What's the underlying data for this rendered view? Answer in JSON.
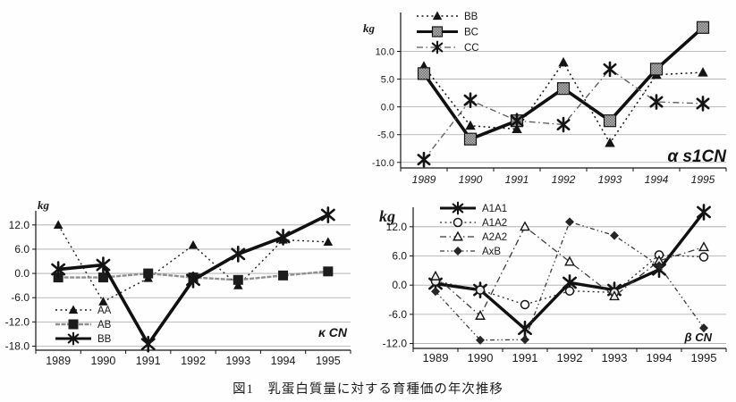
{
  "figure": {
    "caption": "図1　乳蛋白質量に対する育種価の年次推移",
    "unit": "kg"
  },
  "chart_data": [
    {
      "id": "alpha-s1cn",
      "type": "line",
      "name_label": "α s1CN",
      "unit_label": "kg",
      "categories": [
        "1989",
        "1990",
        "1991",
        "1992",
        "1993",
        "1994",
        "1995"
      ],
      "x_labels_italic": true,
      "ylim": [
        -11,
        17
      ],
      "yticks": [
        10,
        5,
        0,
        -5,
        -10
      ],
      "ytick_labels": [
        "10.0",
        "5.0",
        "0.0",
        "-5.0",
        "-10.0"
      ],
      "grid": true,
      "legend_position": "top-left",
      "series": [
        {
          "name": "BB",
          "values": [
            7.3,
            -3.4,
            -4.0,
            8.0,
            -6.5,
            5.8,
            6.2
          ],
          "marker": "triangle",
          "msize": 6,
          "line": "dotted",
          "width": 1.5,
          "color": "#151515"
        },
        {
          "name": "BC",
          "values": [
            6.0,
            -5.8,
            -2.5,
            3.3,
            -2.5,
            6.8,
            14.3
          ],
          "marker": "square",
          "msize": 6.5,
          "line": "solid",
          "width": 3.6,
          "color": "#101010"
        },
        {
          "name": "CC",
          "values": [
            -9.5,
            1.2,
            -2.5,
            -3.2,
            6.8,
            0.9,
            0.6
          ],
          "marker": "asterisk",
          "msize": 6.5,
          "line": "dashdot",
          "width": 1.3,
          "color": "#5a5a5a"
        }
      ]
    },
    {
      "id": "kappa-cn",
      "type": "line",
      "name_label": "κ CN",
      "unit_label": "kg",
      "categories": [
        "1989",
        "1990",
        "1991",
        "1992",
        "1993",
        "1994",
        "1995"
      ],
      "x_labels_italic": false,
      "ylim": [
        -19,
        15.5
      ],
      "yticks": [
        12,
        6,
        0,
        -6,
        -12,
        -18
      ],
      "ytick_labels": [
        "12.0",
        "6.0",
        "0.0",
        "-6.0",
        "-12.0",
        "-18.0"
      ],
      "grid": true,
      "legend_position": "bottom-left",
      "series": [
        {
          "name": "AA",
          "values": [
            12.0,
            -7.0,
            -1.2,
            7.0,
            -3.0,
            8.3,
            7.8
          ],
          "marker": "triangle",
          "msize": 5.5,
          "line": "dotted",
          "width": 1.4,
          "color": "#1a1a1a"
        },
        {
          "name": "AB",
          "values": [
            -1.0,
            -1.0,
            0.0,
            -1.0,
            -1.6,
            -0.5,
            0.5
          ],
          "marker": "square-dark",
          "msize": 5.5,
          "line": "dense",
          "width": 2.4,
          "color": "#8f8f8f"
        },
        {
          "name": "BB",
          "values": [
            1.0,
            2.1,
            -17.5,
            -1.6,
            4.8,
            9.0,
            14.5
          ],
          "marker": "asterisk",
          "msize": 7,
          "line": "solid",
          "width": 3.6,
          "color": "#101010"
        }
      ]
    },
    {
      "id": "beta-cn",
      "type": "line",
      "name_label": "β CN",
      "unit_label": "kg",
      "categories": [
        "1989",
        "1990",
        "1991",
        "1992",
        "1993",
        "1994",
        "1995"
      ],
      "x_labels_italic": false,
      "ylim": [
        -13,
        16
      ],
      "yticks": [
        12,
        6,
        0,
        -6,
        -12
      ],
      "ytick_labels": [
        "12.0",
        "6.0",
        "0.0",
        "-6.0",
        "-12.0"
      ],
      "grid": true,
      "legend_position": "top-left",
      "series": [
        {
          "name": "A1A1",
          "values": [
            0.3,
            -1.0,
            -9.0,
            0.5,
            -1.0,
            3.2,
            15.0
          ],
          "marker": "asterisk",
          "msize": 7,
          "line": "solid",
          "width": 3.4,
          "color": "#101010"
        },
        {
          "name": "A1A2",
          "values": [
            0.8,
            -1.0,
            -4.0,
            -1.2,
            -1.5,
            6.2,
            5.8
          ],
          "marker": "circle-open",
          "msize": 4.5,
          "line": "dotted",
          "width": 1.3,
          "color": "#2a2a2a"
        },
        {
          "name": "A2A2",
          "values": [
            1.8,
            -6.3,
            12.0,
            4.8,
            -2.3,
            5.0,
            7.8
          ],
          "marker": "triangle-open",
          "msize": 5,
          "line": "dashdot",
          "width": 1.3,
          "color": "#3a3a3a"
        },
        {
          "name": "AxB",
          "values": [
            -1.3,
            -11.3,
            -11.2,
            13.0,
            10.2,
            4.0,
            -8.8
          ],
          "marker": "diamond",
          "msize": 5,
          "line": "dashdotdot",
          "width": 1.3,
          "color": "#3a3a3a"
        }
      ]
    }
  ]
}
